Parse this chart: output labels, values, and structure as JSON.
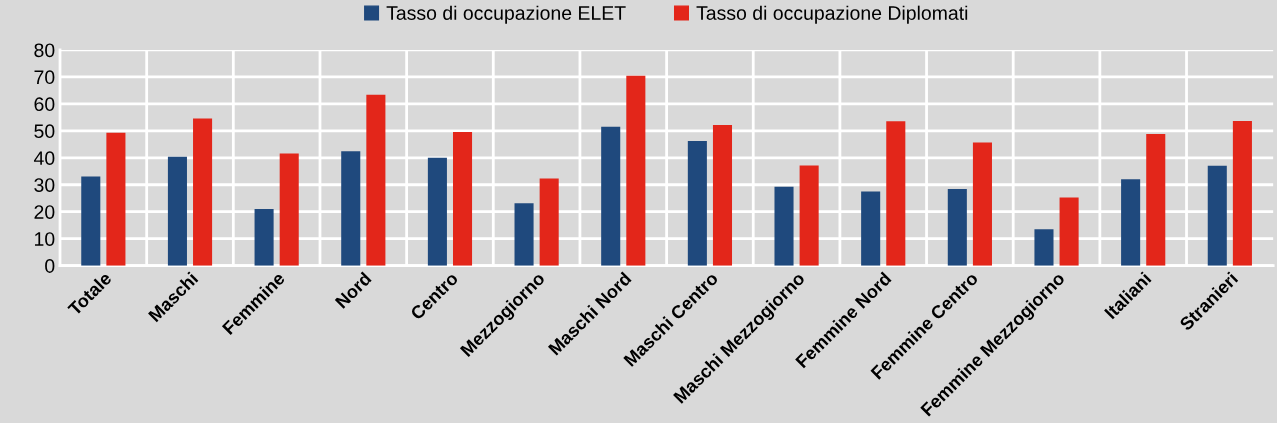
{
  "chart_data": {
    "type": "bar",
    "categories": [
      "Totale",
      "Maschi",
      "Femmine",
      "Nord",
      "Centro",
      "Mezzogiorno",
      "Maschi Nord",
      "Maschi Centro",
      "Maschi Mezzogiorno",
      "Femmine Nord",
      "Femmine Centro",
      "Femmine Mezzogiorno",
      "Italiani",
      "Stranieri"
    ],
    "series": [
      {
        "name": "Tasso di occupazione ELET",
        "color": "#1f497d",
        "values": [
          33.1,
          40.4,
          21,
          42.4,
          40,
          23.1,
          51.5,
          46.2,
          29.3,
          27.5,
          28.4,
          13.5,
          32,
          37
        ]
      },
      {
        "name": "Tasso di occupazione Diplomati",
        "color": "#e3261a",
        "values": [
          49.3,
          54.6,
          41.6,
          63.4,
          49.6,
          32.3,
          70.4,
          52.2,
          37.1,
          53.5,
          45.7,
          25.3,
          48.8,
          53.6
        ]
      }
    ],
    "ylim": [
      0,
      80
    ],
    "yticks": [
      0,
      10,
      20,
      30,
      40,
      50,
      60,
      70,
      80
    ],
    "grid": true,
    "legend": "top"
  }
}
